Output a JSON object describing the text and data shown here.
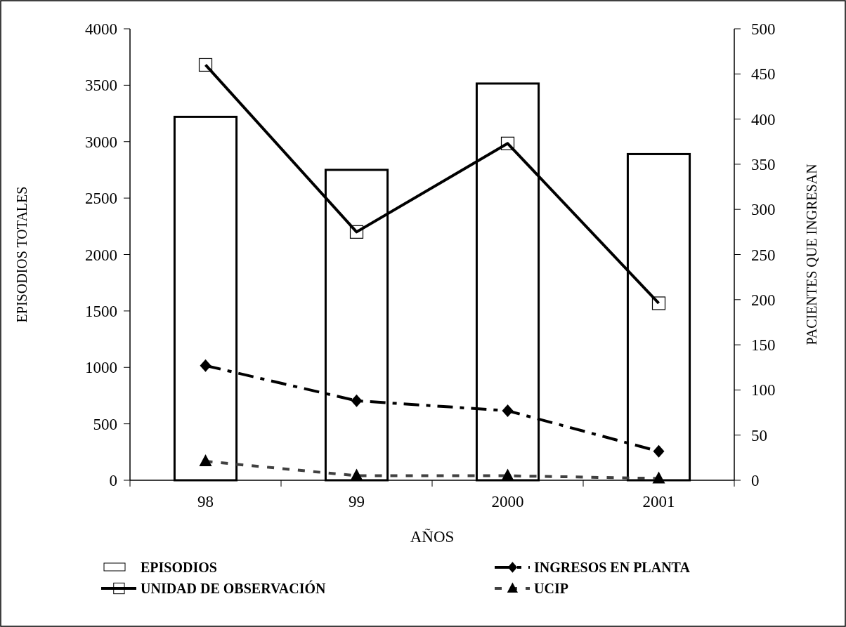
{
  "chart_data": {
    "type": "bar",
    "categories": [
      "98",
      "99",
      "2000",
      "2001"
    ],
    "xlabel": "AÑOS",
    "ylabel": "EPISODIOS TOTALES",
    "y2label": "PACIENTES QUE INGRESAN",
    "ylim": [
      0,
      4000
    ],
    "yticks": [
      0,
      500,
      1000,
      1500,
      2000,
      2500,
      3000,
      3500,
      4000
    ],
    "y2lim": [
      0,
      500
    ],
    "y2ticks": [
      0,
      50,
      100,
      150,
      200,
      250,
      300,
      350,
      400,
      450,
      500
    ],
    "legend": "bottom",
    "grid": false,
    "series": [
      {
        "name": "EPISODIOS",
        "color": "#ffffff",
        "values": [
          3220,
          2750,
          3515,
          2890
        ]
      },
      {
        "name": "INGRESOS EN PLANTA",
        "type": "line",
        "axis": "y2",
        "color": "#000000",
        "marker": "diamond",
        "line_style": "dashdot",
        "values": [
          127,
          88,
          77,
          32
        ]
      },
      {
        "name": "UNIDAD DE OBSERVACIÓN",
        "type": "line",
        "axis": "y2",
        "color": "#000000",
        "marker": "square",
        "line_style": "solid",
        "values": [
          460,
          275,
          373,
          196
        ]
      },
      {
        "name": "UCIP",
        "type": "line",
        "axis": "y2",
        "color": "#404040",
        "marker": "triangle",
        "line_style": "dotted",
        "values": [
          21,
          5,
          5,
          2
        ]
      }
    ]
  }
}
